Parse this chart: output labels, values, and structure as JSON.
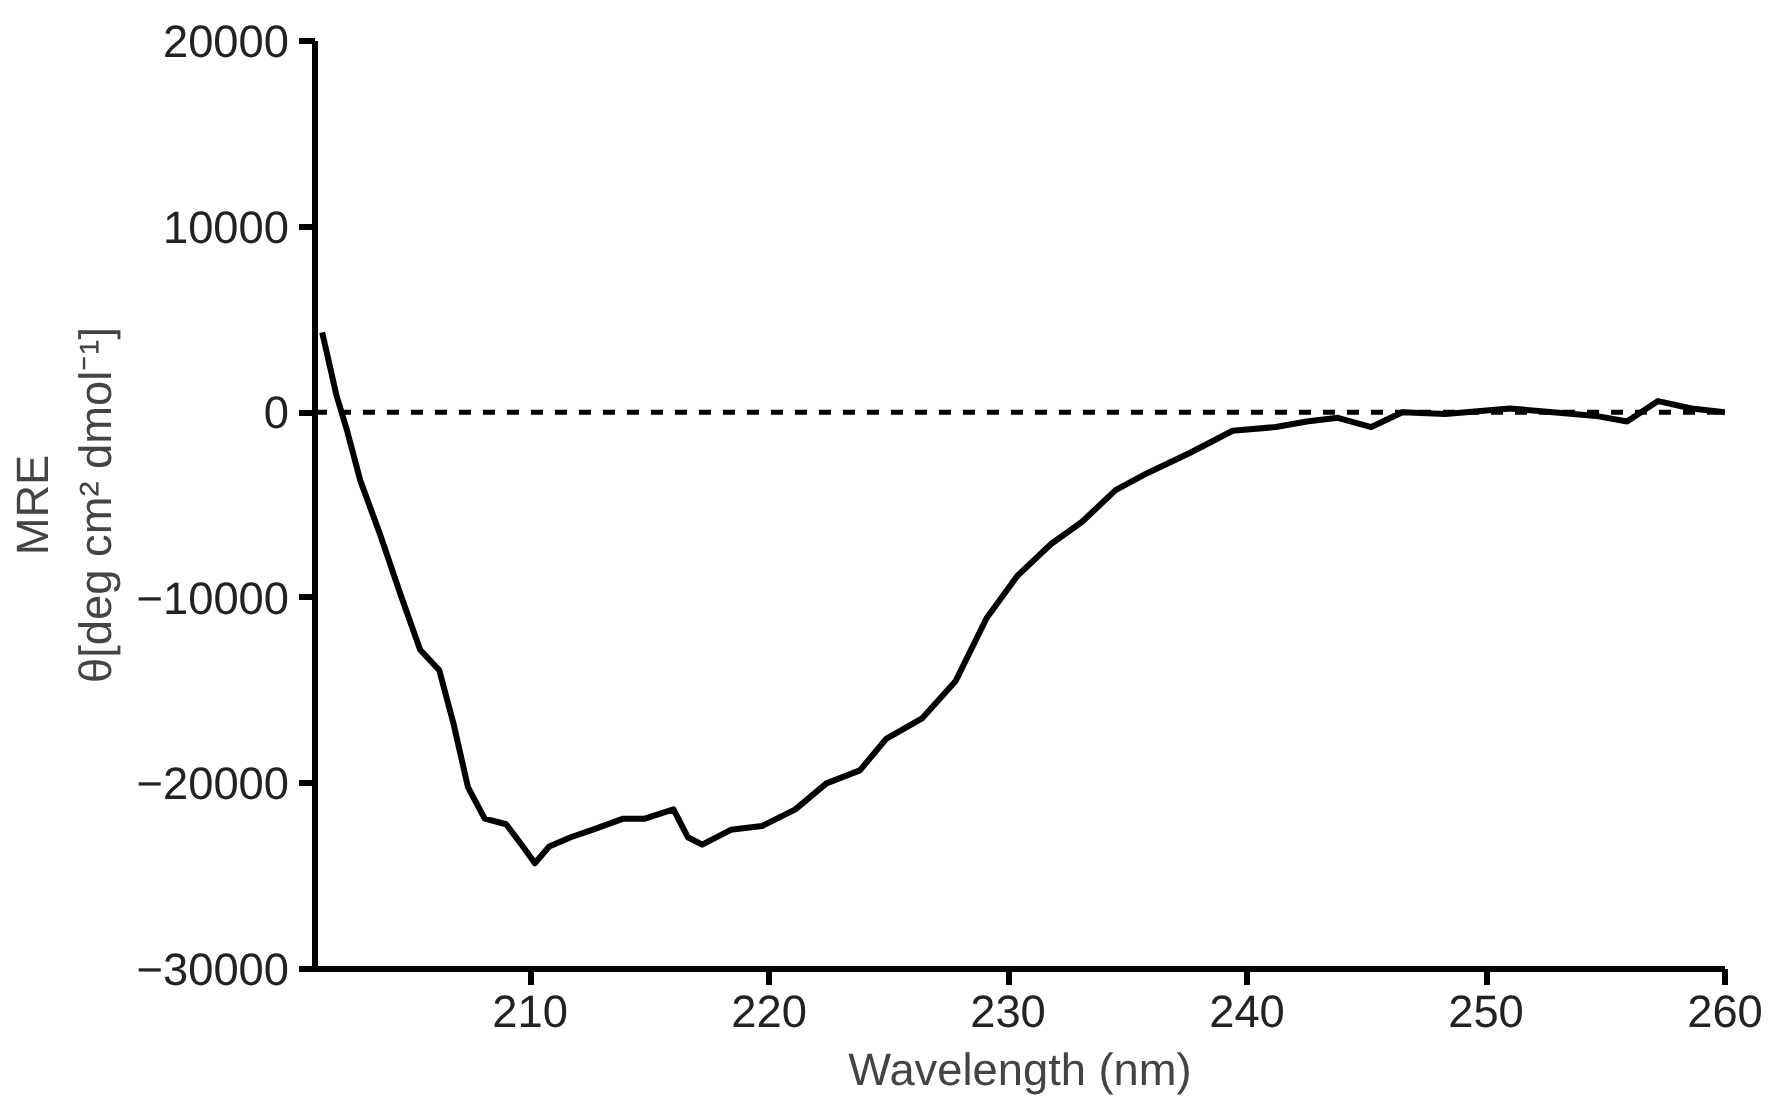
{
  "chart_data": {
    "type": "line",
    "xlabel": "Wavelength (nm)",
    "ylabel": "MRE\nθ[deg cm² dmol⁻¹]",
    "xlim": [
      201,
      260
    ],
    "xticks": [
      210,
      220,
      230,
      240,
      250,
      260
    ],
    "ylim": [
      -30000,
      20000
    ],
    "yticks": [
      -30000,
      -20000,
      -10000,
      0,
      10000,
      20000
    ],
    "grid": false,
    "marker": "none",
    "line_style": "solid",
    "ref_lines": [
      {
        "axis": "y",
        "value": 0,
        "label": null,
        "color": "#000000",
        "line_style": "dashed"
      }
    ],
    "series": [
      {
        "color": "#000000",
        "x": [
          201.3,
          201.9,
          202.3,
          202.9,
          203.7,
          204.6,
          205.4,
          206.2,
          206.8,
          207.4,
          208.1,
          209,
          209.7,
          210.2,
          210.8,
          211.7,
          212.6,
          213.9,
          214.8,
          216,
          216.6,
          217.2,
          218.4,
          219.7,
          221.1,
          222.4,
          223.8,
          224.9,
          226.4,
          227.8,
          229.1,
          230.4,
          231.8,
          233.1,
          234.5,
          235.8,
          237.6,
          239.4,
          241.2,
          242.5,
          243.8,
          245.2,
          246.5,
          248.3,
          251,
          252.8,
          254.6,
          255.9,
          257.2,
          258.6,
          260
        ],
        "values": [
          4300,
          900,
          -800,
          -3700,
          -6500,
          -9900,
          -12800,
          -13900,
          -16800,
          -20200,
          -21900,
          -22200,
          -23400,
          -24300,
          -23400,
          -22900,
          -22500,
          -21900,
          -21900,
          -21400,
          -22900,
          -23300,
          -22500,
          -22300,
          -21400,
          -20000,
          -19300,
          -17600,
          -16500,
          -14500,
          -11100,
          -8800,
          -7100,
          -5900,
          -4200,
          -3300,
          -2200,
          -1000,
          -800,
          -500,
          -300,
          -800,
          0,
          -100,
          200,
          0,
          -200,
          -500,
          600,
          200,
          0
        ]
      }
    ]
  }
}
